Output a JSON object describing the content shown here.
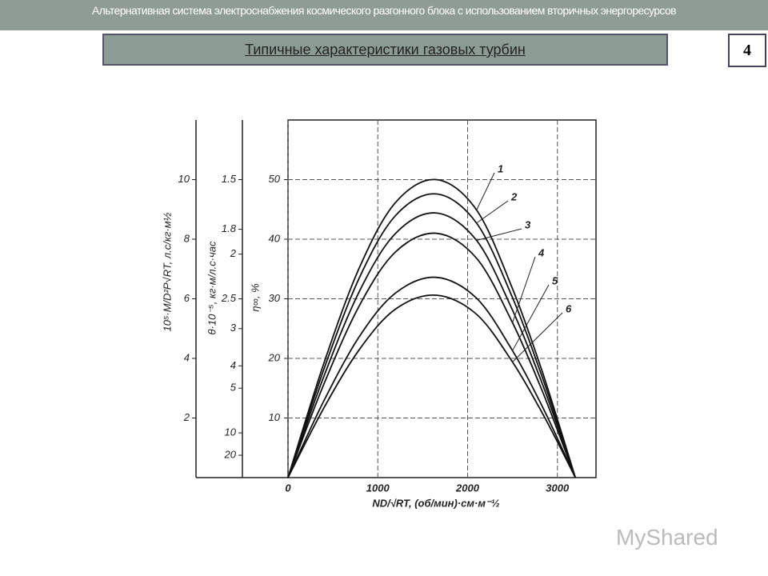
{
  "slide": {
    "header": "Альтернативная система электроснабжения космического разгонного блока с использованием вторичных энергоресурсов",
    "title": "Типичные характеристики газовых турбин",
    "number": "4",
    "watermark": "MyShared"
  },
  "chart_data": {
    "type": "line",
    "xlabel": "ND/√RT, (об/мин)·см·м⁻½",
    "ylabel": "η∞, %",
    "y2label": "10⁵·M/D²P√RT, л.с/кг·м½",
    "y3label": "θ·10⁻⁵, кг·м/л.с·час",
    "x": [
      0,
      400,
      800,
      1200,
      1650,
      2100,
      2500,
      2800,
      3000,
      3200
    ],
    "series": [
      {
        "name": "1",
        "color": "#111111",
        "values": [
          0,
          19.2,
          35.4,
          46.2,
          50,
          44.9,
          31.7,
          19.2,
          9.8,
          0
        ]
      },
      {
        "name": "2",
        "color": "#111111",
        "values": [
          0,
          18.2,
          33.7,
          44,
          47.6,
          42.7,
          30.2,
          18.2,
          9.3,
          0
        ]
      },
      {
        "name": "3",
        "color": "#111111",
        "values": [
          0,
          17,
          31.4,
          41,
          44.4,
          39.8,
          28.1,
          17,
          8.7,
          0
        ]
      },
      {
        "name": "4",
        "color": "#111111",
        "values": [
          0,
          15.7,
          29,
          37.9,
          41,
          36.8,
          26,
          15.7,
          8,
          0
        ]
      },
      {
        "name": "5",
        "color": "#111111",
        "values": [
          0,
          12.9,
          23.8,
          31,
          33.6,
          30.1,
          21.3,
          12.9,
          6.6,
          0
        ]
      },
      {
        "name": "6",
        "color": "#111111",
        "values": [
          0,
          11.7,
          21.6,
          28.3,
          30.6,
          27.4,
          19.4,
          11.7,
          6,
          0
        ]
      }
    ],
    "xlim": [
      0,
      3430
    ],
    "xticks": [
      0,
      1000,
      2000,
      3000
    ],
    "ylim": [
      0,
      60
    ],
    "yticks": [
      10,
      20,
      30,
      40,
      50
    ],
    "y2lim": [
      0,
      12
    ],
    "y2ticks": [
      2,
      4,
      6,
      8,
      10
    ],
    "y3scale": "reciprocal",
    "y3lim": [
      null,
      1.25
    ],
    "y3ticks": [
      1.5,
      1.8,
      2,
      2.5,
      3,
      4,
      5,
      10,
      20
    ],
    "grid": true
  }
}
